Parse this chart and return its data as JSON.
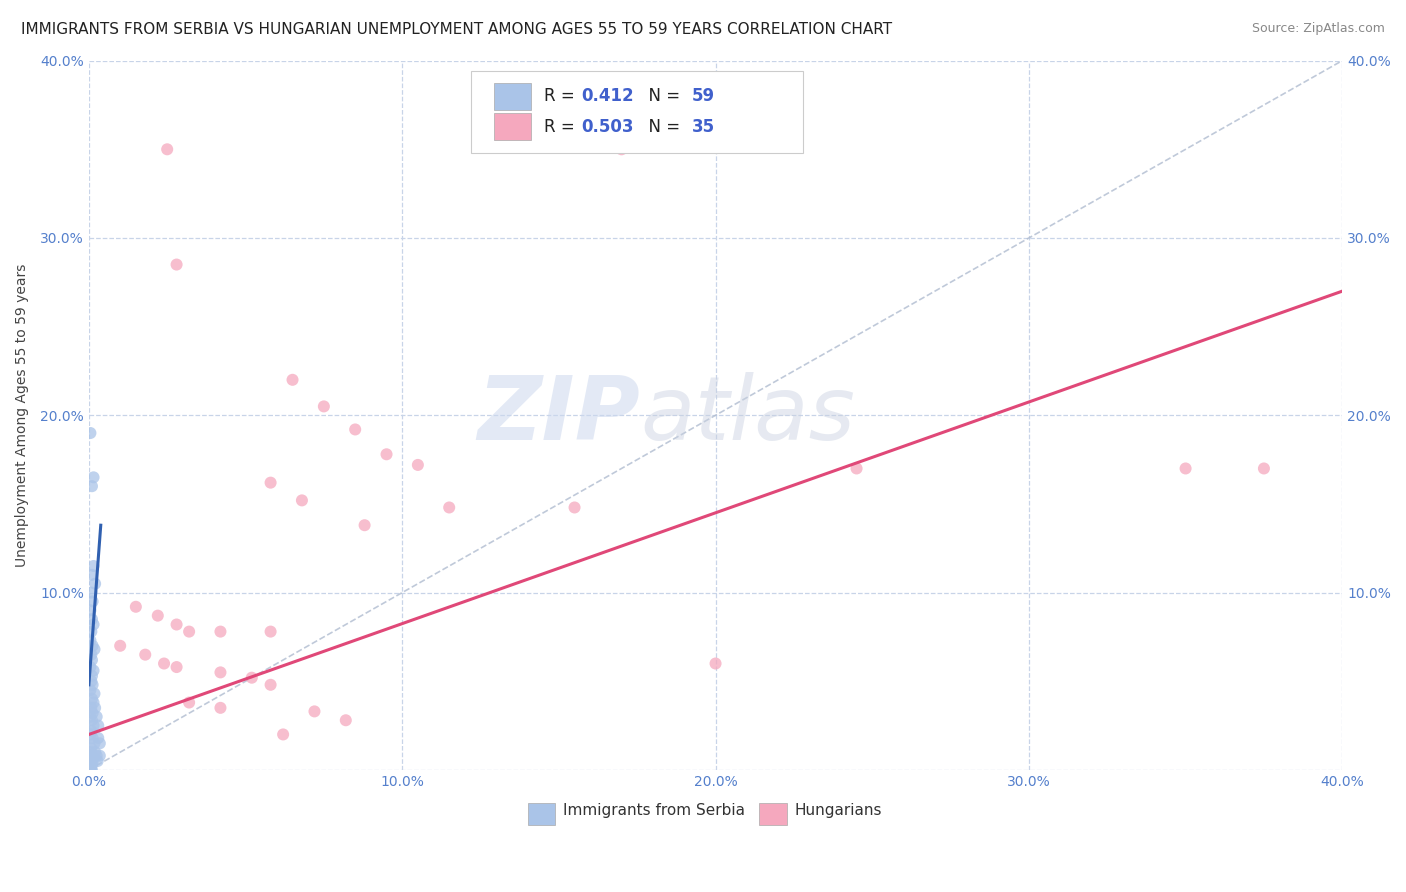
{
  "title": "IMMIGRANTS FROM SERBIA VS HUNGARIAN UNEMPLOYMENT AMONG AGES 55 TO 59 YEARS CORRELATION CHART",
  "source": "Source: ZipAtlas.com",
  "legend_label_serbia": "Immigrants from Serbia",
  "legend_label_hungarian": "Hungarians",
  "ylabel": "Unemployment Among Ages 55 to 59 years",
  "xlim": [
    0.0,
    0.4
  ],
  "ylim": [
    0.0,
    0.4
  ],
  "xticks": [
    0.0,
    0.1,
    0.2,
    0.3,
    0.4
  ],
  "yticks": [
    0.0,
    0.1,
    0.2,
    0.3,
    0.4
  ],
  "xtick_labels": [
    "0.0%",
    "10.0%",
    "20.0%",
    "30.0%",
    "40.0%"
  ],
  "ytick_labels_left": [
    "",
    "10.0%",
    "20.0%",
    "30.0%",
    "40.0%"
  ],
  "ytick_labels_right": [
    "",
    "10.0%",
    "20.0%",
    "30.0%",
    "40.0%"
  ],
  "serbia_R": "0.412",
  "serbia_N": "59",
  "hungarian_R": "0.503",
  "hungarian_N": "35",
  "serbia_color": "#aac4e8",
  "hungarian_color": "#f5a8be",
  "serbia_line_color": "#3060b0",
  "hungarian_line_color": "#e04878",
  "serbia_scatter": [
    [
      0.0005,
      0.19
    ],
    [
      0.0015,
      0.165
    ],
    [
      0.001,
      0.16
    ],
    [
      0.0015,
      0.115
    ],
    [
      0.001,
      0.11
    ],
    [
      0.002,
      0.105
    ],
    [
      0.0008,
      0.1
    ],
    [
      0.0012,
      0.095
    ],
    [
      0.0005,
      0.09
    ],
    [
      0.001,
      0.085
    ],
    [
      0.0015,
      0.082
    ],
    [
      0.0008,
      0.078
    ],
    [
      0.0005,
      0.073
    ],
    [
      0.0012,
      0.07
    ],
    [
      0.0018,
      0.068
    ],
    [
      0.0008,
      0.065
    ],
    [
      0.001,
      0.062
    ],
    [
      0.0005,
      0.058
    ],
    [
      0.0015,
      0.056
    ],
    [
      0.001,
      0.053
    ],
    [
      0.0008,
      0.05
    ],
    [
      0.0012,
      0.048
    ],
    [
      0.0005,
      0.045
    ],
    [
      0.0018,
      0.043
    ],
    [
      0.001,
      0.04
    ],
    [
      0.0015,
      0.038
    ],
    [
      0.0008,
      0.035
    ],
    [
      0.0012,
      0.032
    ],
    [
      0.0005,
      0.03
    ],
    [
      0.001,
      0.028
    ],
    [
      0.0015,
      0.025
    ],
    [
      0.0008,
      0.022
    ],
    [
      0.0005,
      0.02
    ],
    [
      0.0012,
      0.018
    ],
    [
      0.0018,
      0.015
    ],
    [
      0.0008,
      0.012
    ],
    [
      0.0005,
      0.01
    ],
    [
      0.001,
      0.008
    ],
    [
      0.0015,
      0.007
    ],
    [
      0.0005,
      0.006
    ],
    [
      0.0008,
      0.005
    ],
    [
      0.0012,
      0.004
    ],
    [
      0.0005,
      0.003
    ],
    [
      0.001,
      0.003
    ],
    [
      0.0003,
      0.002
    ],
    [
      0.0007,
      0.002
    ],
    [
      0.0003,
      0.001
    ],
    [
      0.0006,
      0.001
    ],
    [
      0.0003,
      0.0
    ],
    [
      0.0007,
      0.0
    ],
    [
      0.001,
      0.0
    ],
    [
      0.002,
      0.01
    ],
    [
      0.0025,
      0.008
    ],
    [
      0.002,
      0.035
    ],
    [
      0.0025,
      0.03
    ],
    [
      0.003,
      0.025
    ],
    [
      0.003,
      0.018
    ],
    [
      0.0035,
      0.015
    ],
    [
      0.0035,
      0.008
    ],
    [
      0.0028,
      0.005
    ]
  ],
  "hungarian_scatter": [
    [
      0.025,
      0.35
    ],
    [
      0.17,
      0.35
    ],
    [
      0.028,
      0.285
    ],
    [
      0.065,
      0.22
    ],
    [
      0.075,
      0.205
    ],
    [
      0.085,
      0.192
    ],
    [
      0.095,
      0.178
    ],
    [
      0.105,
      0.172
    ],
    [
      0.058,
      0.162
    ],
    [
      0.068,
      0.152
    ],
    [
      0.115,
      0.148
    ],
    [
      0.155,
      0.148
    ],
    [
      0.088,
      0.138
    ],
    [
      0.015,
      0.092
    ],
    [
      0.022,
      0.087
    ],
    [
      0.028,
      0.082
    ],
    [
      0.032,
      0.078
    ],
    [
      0.042,
      0.078
    ],
    [
      0.058,
      0.078
    ],
    [
      0.245,
      0.17
    ],
    [
      0.01,
      0.07
    ],
    [
      0.018,
      0.065
    ],
    [
      0.024,
      0.06
    ],
    [
      0.028,
      0.058
    ],
    [
      0.042,
      0.055
    ],
    [
      0.052,
      0.052
    ],
    [
      0.058,
      0.048
    ],
    [
      0.032,
      0.038
    ],
    [
      0.042,
      0.035
    ],
    [
      0.072,
      0.033
    ],
    [
      0.082,
      0.028
    ],
    [
      0.062,
      0.02
    ],
    [
      0.2,
      0.06
    ],
    [
      0.35,
      0.17
    ],
    [
      0.375,
      0.17
    ]
  ],
  "serbia_trendline": [
    [
      0.0,
      0.048
    ],
    [
      0.0038,
      0.138
    ]
  ],
  "hungarian_trendline": [
    [
      0.0,
      0.02
    ],
    [
      0.4,
      0.27
    ]
  ],
  "diagonal_line": [
    [
      0.0,
      0.0
    ],
    [
      0.4,
      0.4
    ]
  ],
  "watermark_zip": "ZIP",
  "watermark_atlas": "atlas",
  "background_color": "#ffffff",
  "grid_color": "#c8d4e8",
  "title_fontsize": 11,
  "source_fontsize": 9,
  "tick_color": "#5580cc",
  "legend_fontsize": 12,
  "scatter_size": 75
}
